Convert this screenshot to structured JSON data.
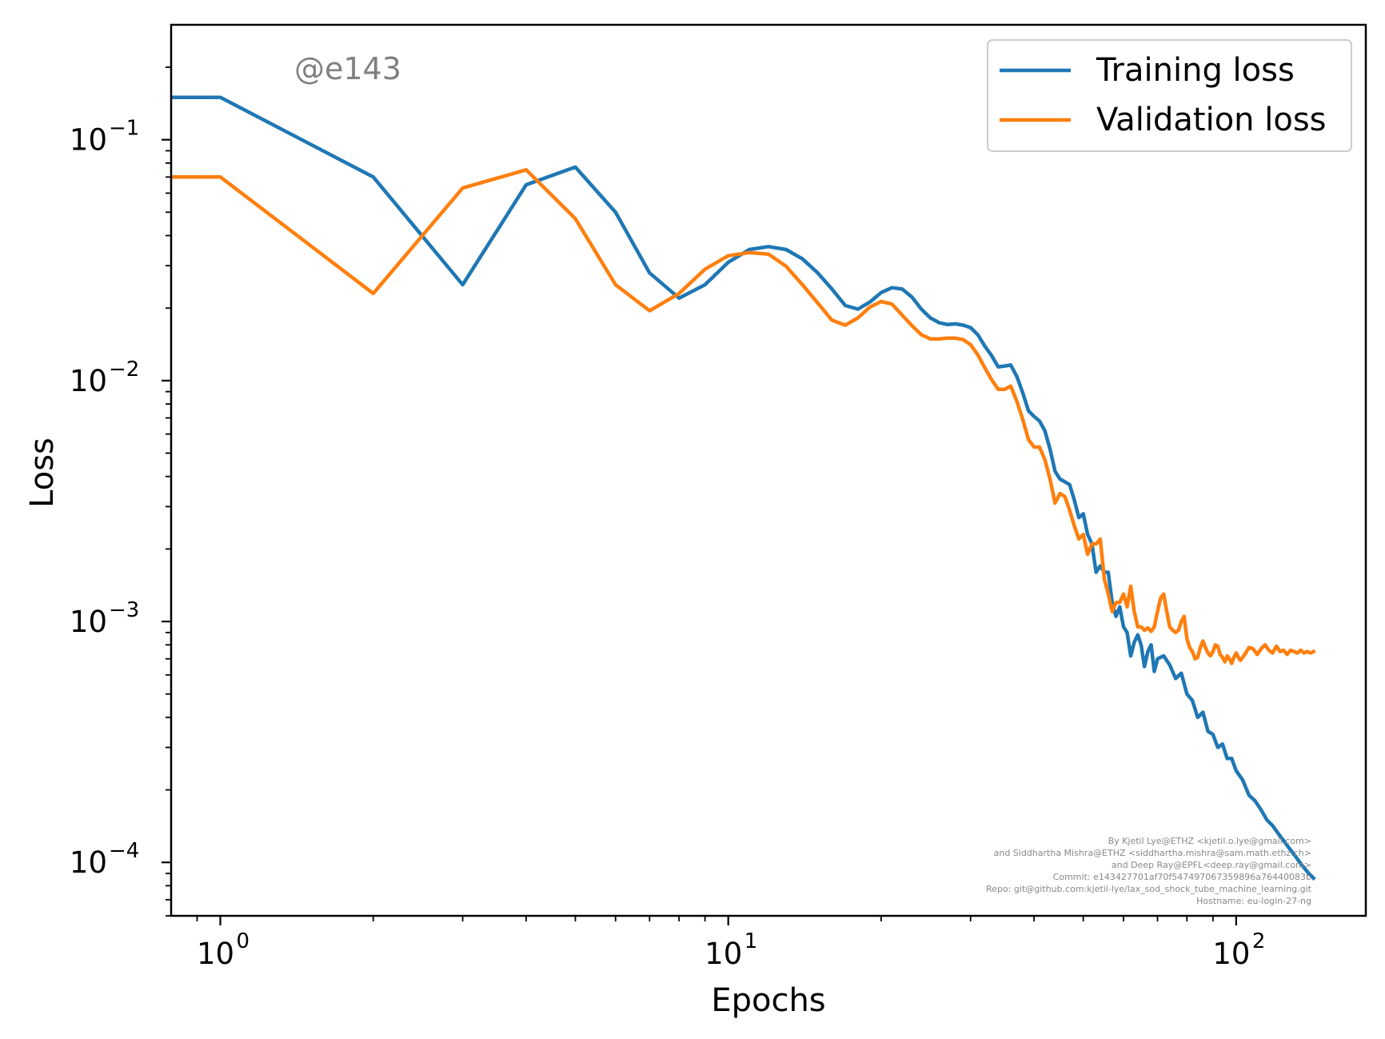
{
  "chart_data": {
    "type": "line",
    "xlabel": "Epochs",
    "ylabel": "Loss",
    "xscale": "log",
    "yscale": "log",
    "xlim": [
      0.8,
      180
    ],
    "ylim": [
      6e-05,
      0.3
    ],
    "grid": false,
    "legend_position": "top-right",
    "watermark": "@e143",
    "x_ticks": [
      {
        "base": "10",
        "exp": "0",
        "value": 1
      },
      {
        "base": "10",
        "exp": "1",
        "value": 10
      },
      {
        "base": "10",
        "exp": "2",
        "value": 100
      }
    ],
    "y_ticks": [
      {
        "base": "10",
        "exp": "−1",
        "value": 0.1
      },
      {
        "base": "10",
        "exp": "−2",
        "value": 0.01
      },
      {
        "base": "10",
        "exp": "−3",
        "value": 0.001
      },
      {
        "base": "10",
        "exp": "−4",
        "value": 0.0001
      }
    ],
    "credits": [
      "By Kjetil Lye@ETHZ <kjetil.o.lye@gmail.com>",
      "and Siddhartha Mishra@ETHZ <siddhartha.mishra@sam.math.ethz.ch>",
      "and Deep Ray@EPFL<deep.ray@gmail.com>",
      "Commit: e143427701af70f547497067359896a76440083b",
      "Repo: git@github.com:kjetil-lye/lax_sod_shock_tube_machine_learning.git",
      "Hostname: eu-login-27-ng"
    ],
    "series": [
      {
        "name": "Training loss",
        "color": "#1f77b4",
        "points": [
          [
            0.5,
            0.15
          ],
          [
            1,
            0.15
          ],
          [
            2,
            0.07
          ],
          [
            3,
            0.025
          ],
          [
            4,
            0.065
          ],
          [
            5,
            0.077
          ],
          [
            6,
            0.05
          ],
          [
            7,
            0.028
          ],
          [
            8,
            0.022
          ],
          [
            9,
            0.025
          ],
          [
            10,
            0.031
          ],
          [
            11,
            0.035
          ],
          [
            12,
            0.036
          ],
          [
            13,
            0.035
          ],
          [
            14,
            0.032
          ],
          [
            15,
            0.028
          ],
          [
            16,
            0.024
          ],
          [
            17,
            0.0205
          ],
          [
            18,
            0.0198
          ],
          [
            19,
            0.0212
          ],
          [
            20,
            0.0232
          ],
          [
            21,
            0.0243
          ],
          [
            22,
            0.024
          ],
          [
            23,
            0.0222
          ],
          [
            24,
            0.0198
          ],
          [
            25,
            0.0182
          ],
          [
            26,
            0.0174
          ],
          [
            27,
            0.0171
          ],
          [
            28,
            0.0172
          ],
          [
            29,
            0.017
          ],
          [
            30,
            0.0166
          ],
          [
            31,
            0.0155
          ],
          [
            32,
            0.0139
          ],
          [
            33,
            0.0127
          ],
          [
            34,
            0.0114
          ],
          [
            35,
            0.0115
          ],
          [
            36,
            0.0116
          ],
          [
            37,
            0.0104
          ],
          [
            38,
            0.0089
          ],
          [
            39,
            0.0075
          ],
          [
            40,
            0.0071
          ],
          [
            41,
            0.0068
          ],
          [
            42,
            0.0062
          ],
          [
            43,
            0.0052
          ],
          [
            44,
            0.0042
          ],
          [
            45,
            0.0039
          ],
          [
            46,
            0.0038
          ],
          [
            47,
            0.0037
          ],
          [
            48,
            0.0032
          ],
          [
            49,
            0.0027
          ],
          [
            50,
            0.0028
          ],
          [
            51,
            0.0023
          ],
          [
            52,
            0.0021
          ],
          [
            53,
            0.0016
          ],
          [
            54,
            0.0017
          ],
          [
            55,
            0.0016
          ],
          [
            56,
            0.0016
          ],
          [
            57,
            0.0012
          ],
          [
            58,
            0.00105
          ],
          [
            59,
            0.00115
          ],
          [
            60,
            0.00095
          ],
          [
            61,
            0.0009
          ],
          [
            62,
            0.00072
          ],
          [
            63,
            0.00082
          ],
          [
            64,
            0.00088
          ],
          [
            65,
            0.0008
          ],
          [
            66,
            0.00065
          ],
          [
            67,
            0.00075
          ],
          [
            68,
            0.0008
          ],
          [
            69,
            0.00062
          ],
          [
            70,
            0.0007
          ],
          [
            72,
            0.00072
          ],
          [
            74,
            0.00066
          ],
          [
            76,
            0.00058
          ],
          [
            78,
            0.00061
          ],
          [
            80,
            0.0005
          ],
          [
            82,
            0.00047
          ],
          [
            84,
            0.0004
          ],
          [
            86,
            0.00042
          ],
          [
            88,
            0.00035
          ],
          [
            90,
            0.00034
          ],
          [
            92,
            0.0003
          ],
          [
            94,
            0.00031
          ],
          [
            96,
            0.00027
          ],
          [
            98,
            0.00027
          ],
          [
            100,
            0.00024
          ],
          [
            103,
            0.00022
          ],
          [
            106,
            0.00019
          ],
          [
            109,
            0.00018
          ],
          [
            112,
            0.000165
          ],
          [
            115,
            0.00015
          ],
          [
            118,
            0.000142
          ],
          [
            121,
            0.000132
          ],
          [
            124,
            0.000123
          ],
          [
            127,
            0.000115
          ],
          [
            130,
            0.000108
          ],
          [
            133,
            0.000101
          ],
          [
            136,
            9.5e-05
          ],
          [
            139,
            9e-05
          ],
          [
            142,
            8.6e-05
          ]
        ]
      },
      {
        "name": "Validation loss",
        "color": "#ff7f0e",
        "points": [
          [
            0.5,
            0.07
          ],
          [
            1,
            0.07
          ],
          [
            2,
            0.023
          ],
          [
            3,
            0.063
          ],
          [
            4,
            0.075
          ],
          [
            5,
            0.047
          ],
          [
            6,
            0.025
          ],
          [
            7,
            0.0195
          ],
          [
            8,
            0.023
          ],
          [
            9,
            0.029
          ],
          [
            10,
            0.033
          ],
          [
            11,
            0.034
          ],
          [
            12,
            0.0335
          ],
          [
            13,
            0.0298
          ],
          [
            14,
            0.025
          ],
          [
            15,
            0.021
          ],
          [
            16,
            0.0178
          ],
          [
            17,
            0.017
          ],
          [
            18,
            0.0182
          ],
          [
            19,
            0.0202
          ],
          [
            20,
            0.0213
          ],
          [
            21,
            0.0208
          ],
          [
            22,
            0.0187
          ],
          [
            23,
            0.0169
          ],
          [
            24,
            0.0155
          ],
          [
            25,
            0.0149
          ],
          [
            26,
            0.0149
          ],
          [
            27,
            0.015
          ],
          [
            28,
            0.015
          ],
          [
            29,
            0.0148
          ],
          [
            30,
            0.0141
          ],
          [
            31,
            0.0128
          ],
          [
            32,
            0.0113
          ],
          [
            33,
            0.0101
          ],
          [
            34,
            0.0092
          ],
          [
            35,
            0.0092
          ],
          [
            36,
            0.0095
          ],
          [
            37,
            0.0082
          ],
          [
            38,
            0.0069
          ],
          [
            39,
            0.0057
          ],
          [
            40,
            0.0053
          ],
          [
            41,
            0.0053
          ],
          [
            42,
            0.0047
          ],
          [
            43,
            0.0039
          ],
          [
            44,
            0.0031
          ],
          [
            45,
            0.0034
          ],
          [
            46,
            0.0033
          ],
          [
            47,
            0.0029
          ],
          [
            48,
            0.0025
          ],
          [
            49,
            0.0022
          ],
          [
            50,
            0.0023
          ],
          [
            51,
            0.0019
          ],
          [
            52,
            0.0021
          ],
          [
            53,
            0.0021
          ],
          [
            54,
            0.0022
          ],
          [
            55,
            0.0015
          ],
          [
            56,
            0.0013
          ],
          [
            57,
            0.0011
          ],
          [
            58,
            0.0012
          ],
          [
            59,
            0.0012
          ],
          [
            60,
            0.0013
          ],
          [
            61,
            0.00115
          ],
          [
            62,
            0.0014
          ],
          [
            63,
            0.0011
          ],
          [
            64,
            0.00095
          ],
          [
            65,
            0.00095
          ],
          [
            66,
            0.00092
          ],
          [
            67,
            0.00094
          ],
          [
            68,
            0.00091
          ],
          [
            69,
            0.00095
          ],
          [
            70,
            0.0011
          ],
          [
            71,
            0.00125
          ],
          [
            72,
            0.0013
          ],
          [
            73,
            0.0011
          ],
          [
            74,
            0.00095
          ],
          [
            75,
            0.00092
          ],
          [
            76,
            0.0009
          ],
          [
            77,
            0.00092
          ],
          [
            78,
            0.001
          ],
          [
            79,
            0.00105
          ],
          [
            80,
            0.00085
          ],
          [
            81,
            0.00078
          ],
          [
            82,
            0.00075
          ],
          [
            83,
            0.0007
          ],
          [
            84,
            0.00071
          ],
          [
            85,
            0.00078
          ],
          [
            86,
            0.00083
          ],
          [
            87,
            0.00078
          ],
          [
            88,
            0.00074
          ],
          [
            89,
            0.00072
          ],
          [
            90,
            0.00075
          ],
          [
            91,
            0.0008
          ],
          [
            92,
            0.00079
          ],
          [
            93,
            0.00073
          ],
          [
            94,
            0.00071
          ],
          [
            95,
            0.00068
          ],
          [
            96,
            0.00072
          ],
          [
            97,
            0.0007
          ],
          [
            98,
            0.00067
          ],
          [
            99,
            0.00071
          ],
          [
            100,
            0.00074
          ],
          [
            101,
            0.00071
          ],
          [
            102,
            0.00069
          ],
          [
            104,
            0.00073
          ],
          [
            106,
            0.00078
          ],
          [
            108,
            0.00077
          ],
          [
            110,
            0.00073
          ],
          [
            112,
            0.00077
          ],
          [
            114,
            0.0008
          ],
          [
            116,
            0.00076
          ],
          [
            118,
            0.00074
          ],
          [
            120,
            0.00079
          ],
          [
            122,
            0.00075
          ],
          [
            124,
            0.00076
          ],
          [
            126,
            0.00073
          ],
          [
            128,
            0.00076
          ],
          [
            130,
            0.00075
          ],
          [
            132,
            0.00074
          ],
          [
            134,
            0.00076
          ],
          [
            136,
            0.00074
          ],
          [
            138,
            0.00075
          ],
          [
            140,
            0.00074
          ],
          [
            142,
            0.00075
          ]
        ]
      }
    ]
  }
}
